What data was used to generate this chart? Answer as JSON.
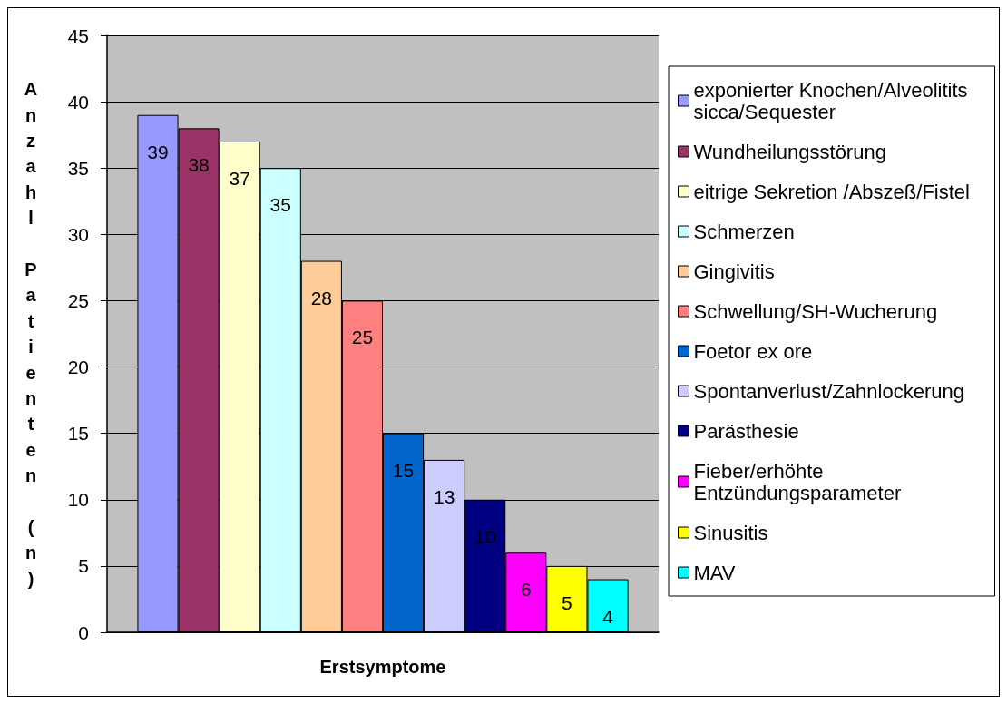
{
  "chart_data": {
    "type": "bar",
    "xlabel": "Erstsymptome",
    "ylabel": "Anzahl Patienten (n)",
    "categories": [
      null
    ],
    "series": [
      {
        "name": "exponierter Knochen/Alveolitits sicca/Sequester",
        "color": "#9999ff",
        "values": [
          39
        ]
      },
      {
        "name": "Wundheilungsstörung",
        "color": "#993366",
        "values": [
          38
        ]
      },
      {
        "name": "eitrige Sekretion /Abszeß/Fistel",
        "color": "#ffffcc",
        "values": [
          37
        ]
      },
      {
        "name": "Schmerzen",
        "color": "#ccffff",
        "values": [
          35
        ]
      },
      {
        "name": "Gingivitis",
        "color": "#ffcc99",
        "values": [
          28
        ]
      },
      {
        "name": "Schwellung/SH-Wucherung",
        "color": "#ff8080",
        "values": [
          25
        ]
      },
      {
        "name": "Foetor ex ore",
        "color": "#0066cc",
        "values": [
          15
        ]
      },
      {
        "name": "Spontanverlust/Zahnlockerung",
        "color": "#ccccff",
        "values": [
          13
        ]
      },
      {
        "name": "Parästhesie",
        "color": "#000080",
        "values": [
          10
        ]
      },
      {
        "name": "Fieber/erhöhte Entzündungsparameter",
        "color": "#ff00ff",
        "values": [
          6
        ]
      },
      {
        "name": "Sinusitis",
        "color": "#ffff00",
        "values": [
          5
        ]
      },
      {
        "name": "MAV",
        "color": "#00ffff",
        "values": [
          4
        ]
      }
    ],
    "ylim": [
      0,
      45
    ],
    "yticks": [
      0,
      5,
      10,
      15,
      20,
      25,
      30,
      35,
      40,
      45
    ],
    "grid": "y",
    "legend": "right",
    "data_labels": true
  }
}
